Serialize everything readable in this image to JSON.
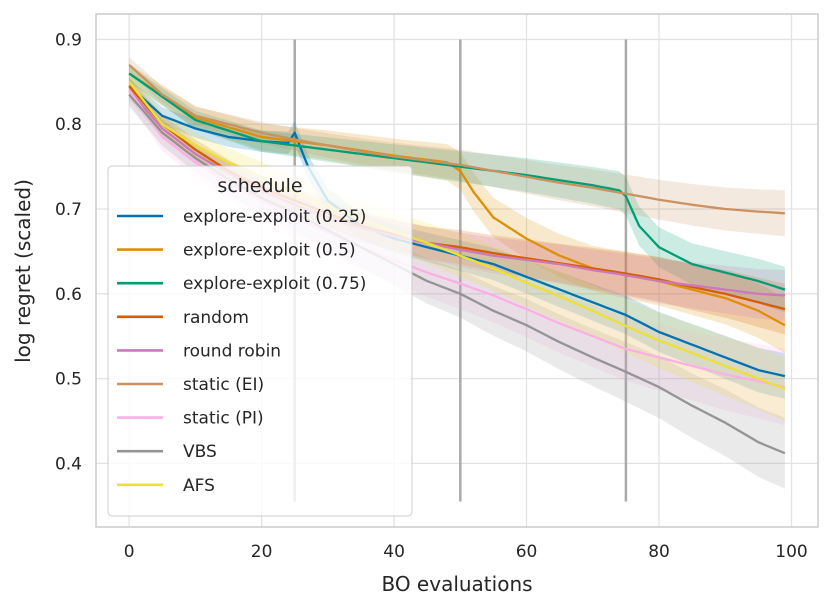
{
  "chart_data": {
    "type": "line",
    "title": "",
    "xlabel": "BO evaluations",
    "ylabel": "log regret (scaled)",
    "xlim": [
      -5,
      104
    ],
    "ylim": [
      0.325,
      0.93
    ],
    "xticks": [
      0,
      20,
      40,
      60,
      80,
      100
    ],
    "yticks": [
      0.4,
      0.5,
      0.6,
      0.7,
      0.8,
      0.9
    ],
    "xtick_labels": [
      "0",
      "20",
      "40",
      "60",
      "80",
      "100"
    ],
    "ytick_labels": [
      "0.4",
      "0.5",
      "0.6",
      "0.7",
      "0.8",
      "0.9"
    ],
    "grid": true,
    "legend": {
      "title": "schedule",
      "position": "left"
    },
    "vlines": {
      "x": [
        25,
        50,
        75
      ],
      "ymin": 0.355,
      "ymax": 0.9,
      "color": "#aaaaaa"
    },
    "series": [
      {
        "name": "explore-exploit (0.25)",
        "color": "#0173b2",
        "points": [
          [
            0,
            0.845
          ],
          [
            5,
            0.81
          ],
          [
            10,
            0.795
          ],
          [
            15,
            0.785
          ],
          [
            20,
            0.78
          ],
          [
            24,
            0.778
          ],
          [
            25,
            0.79
          ],
          [
            27,
            0.75
          ],
          [
            30,
            0.71
          ],
          [
            35,
            0.68
          ],
          [
            40,
            0.665
          ],
          [
            45,
            0.655
          ],
          [
            50,
            0.645
          ],
          [
            55,
            0.635
          ],
          [
            60,
            0.62
          ],
          [
            65,
            0.605
          ],
          [
            70,
            0.59
          ],
          [
            75,
            0.575
          ],
          [
            80,
            0.555
          ],
          [
            85,
            0.54
          ],
          [
            90,
            0.525
          ],
          [
            95,
            0.51
          ],
          [
            99,
            0.503
          ]
        ],
        "spread": 0.018
      },
      {
        "name": "explore-exploit (0.5)",
        "color": "#de8f05",
        "points": [
          [
            0,
            0.86
          ],
          [
            10,
            0.808
          ],
          [
            20,
            0.785
          ],
          [
            30,
            0.775
          ],
          [
            40,
            0.763
          ],
          [
            48,
            0.755
          ],
          [
            50,
            0.745
          ],
          [
            52,
            0.72
          ],
          [
            55,
            0.69
          ],
          [
            60,
            0.665
          ],
          [
            65,
            0.645
          ],
          [
            70,
            0.63
          ],
          [
            75,
            0.622
          ],
          [
            80,
            0.615
          ],
          [
            85,
            0.605
          ],
          [
            90,
            0.595
          ],
          [
            95,
            0.58
          ],
          [
            99,
            0.563
          ]
        ],
        "spread": 0.022
      },
      {
        "name": "explore-exploit (0.75)",
        "color": "#029e73",
        "points": [
          [
            0,
            0.86
          ],
          [
            10,
            0.805
          ],
          [
            20,
            0.78
          ],
          [
            30,
            0.77
          ],
          [
            40,
            0.76
          ],
          [
            50,
            0.75
          ],
          [
            60,
            0.74
          ],
          [
            70,
            0.728
          ],
          [
            74,
            0.722
          ],
          [
            75,
            0.715
          ],
          [
            77,
            0.68
          ],
          [
            80,
            0.655
          ],
          [
            85,
            0.635
          ],
          [
            90,
            0.625
          ],
          [
            95,
            0.615
          ],
          [
            99,
            0.605
          ]
        ],
        "spread": 0.018
      },
      {
        "name": "random",
        "color": "#d55e00",
        "points": [
          [
            0,
            0.845
          ],
          [
            5,
            0.8
          ],
          [
            10,
            0.77
          ],
          [
            15,
            0.745
          ],
          [
            20,
            0.725
          ],
          [
            25,
            0.71
          ],
          [
            30,
            0.695
          ],
          [
            35,
            0.68
          ],
          [
            40,
            0.67
          ],
          [
            45,
            0.66
          ],
          [
            50,
            0.655
          ],
          [
            55,
            0.648
          ],
          [
            60,
            0.642
          ],
          [
            65,
            0.636
          ],
          [
            70,
            0.63
          ],
          [
            75,
            0.624
          ],
          [
            80,
            0.617
          ],
          [
            85,
            0.608
          ],
          [
            90,
            0.6
          ],
          [
            95,
            0.59
          ],
          [
            99,
            0.582
          ]
        ],
        "spread": 0.02
      },
      {
        "name": "round robin",
        "color": "#cc78bc",
        "points": [
          [
            0,
            0.84
          ],
          [
            5,
            0.795
          ],
          [
            10,
            0.765
          ],
          [
            15,
            0.742
          ],
          [
            20,
            0.722
          ],
          [
            25,
            0.705
          ],
          [
            30,
            0.69
          ],
          [
            35,
            0.678
          ],
          [
            40,
            0.668
          ],
          [
            45,
            0.66
          ],
          [
            50,
            0.652
          ],
          [
            55,
            0.645
          ],
          [
            60,
            0.64
          ],
          [
            65,
            0.635
          ],
          [
            70,
            0.628
          ],
          [
            75,
            0.622
          ],
          [
            80,
            0.615
          ],
          [
            85,
            0.61
          ],
          [
            90,
            0.605
          ],
          [
            95,
            0.6
          ],
          [
            99,
            0.598
          ]
        ],
        "spread": 0.02
      },
      {
        "name": "static (EI)",
        "color": "#ca9161",
        "points": [
          [
            0,
            0.87
          ],
          [
            5,
            0.835
          ],
          [
            10,
            0.81
          ],
          [
            15,
            0.8
          ],
          [
            20,
            0.79
          ],
          [
            25,
            0.782
          ],
          [
            30,
            0.775
          ],
          [
            35,
            0.768
          ],
          [
            40,
            0.762
          ],
          [
            45,
            0.757
          ],
          [
            50,
            0.752
          ],
          [
            55,
            0.745
          ],
          [
            60,
            0.738
          ],
          [
            65,
            0.731
          ],
          [
            70,
            0.725
          ],
          [
            75,
            0.718
          ],
          [
            80,
            0.711
          ],
          [
            85,
            0.705
          ],
          [
            90,
            0.7
          ],
          [
            95,
            0.697
          ],
          [
            99,
            0.695
          ]
        ],
        "spread": 0.018
      },
      {
        "name": "static (PI)",
        "color": "#fbafe4",
        "points": [
          [
            0,
            0.84
          ],
          [
            5,
            0.785
          ],
          [
            10,
            0.755
          ],
          [
            15,
            0.73
          ],
          [
            20,
            0.71
          ],
          [
            25,
            0.69
          ],
          [
            30,
            0.672
          ],
          [
            35,
            0.655
          ],
          [
            40,
            0.64
          ],
          [
            45,
            0.625
          ],
          [
            50,
            0.612
          ],
          [
            55,
            0.598
          ],
          [
            60,
            0.582
          ],
          [
            65,
            0.565
          ],
          [
            70,
            0.55
          ],
          [
            75,
            0.535
          ],
          [
            80,
            0.525
          ],
          [
            85,
            0.515
          ],
          [
            90,
            0.505
          ],
          [
            95,
            0.497
          ],
          [
            99,
            0.49
          ]
        ],
        "spread": 0.03
      },
      {
        "name": "VBS",
        "color": "#949494",
        "points": [
          [
            0,
            0.835
          ],
          [
            5,
            0.79
          ],
          [
            10,
            0.76
          ],
          [
            15,
            0.735
          ],
          [
            20,
            0.713
          ],
          [
            25,
            0.695
          ],
          [
            30,
            0.675
          ],
          [
            35,
            0.655
          ],
          [
            40,
            0.635
          ],
          [
            45,
            0.615
          ],
          [
            50,
            0.6
          ],
          [
            55,
            0.58
          ],
          [
            60,
            0.563
          ],
          [
            65,
            0.543
          ],
          [
            70,
            0.525
          ],
          [
            75,
            0.508
          ],
          [
            80,
            0.49
          ],
          [
            85,
            0.468
          ],
          [
            90,
            0.448
          ],
          [
            95,
            0.425
          ],
          [
            99,
            0.412
          ]
        ],
        "spread": 0.028
      },
      {
        "name": "AFS",
        "color": "#ece133",
        "points": [
          [
            0,
            0.85
          ],
          [
            5,
            0.8
          ],
          [
            10,
            0.775
          ],
          [
            15,
            0.755
          ],
          [
            20,
            0.738
          ],
          [
            25,
            0.72
          ],
          [
            30,
            0.703
          ],
          [
            35,
            0.688
          ],
          [
            40,
            0.673
          ],
          [
            45,
            0.66
          ],
          [
            50,
            0.645
          ],
          [
            55,
            0.63
          ],
          [
            60,
            0.613
          ],
          [
            65,
            0.597
          ],
          [
            70,
            0.58
          ],
          [
            75,
            0.562
          ],
          [
            80,
            0.545
          ],
          [
            85,
            0.53
          ],
          [
            90,
            0.515
          ],
          [
            95,
            0.5
          ],
          [
            99,
            0.488
          ]
        ],
        "spread": 0.025
      }
    ]
  }
}
